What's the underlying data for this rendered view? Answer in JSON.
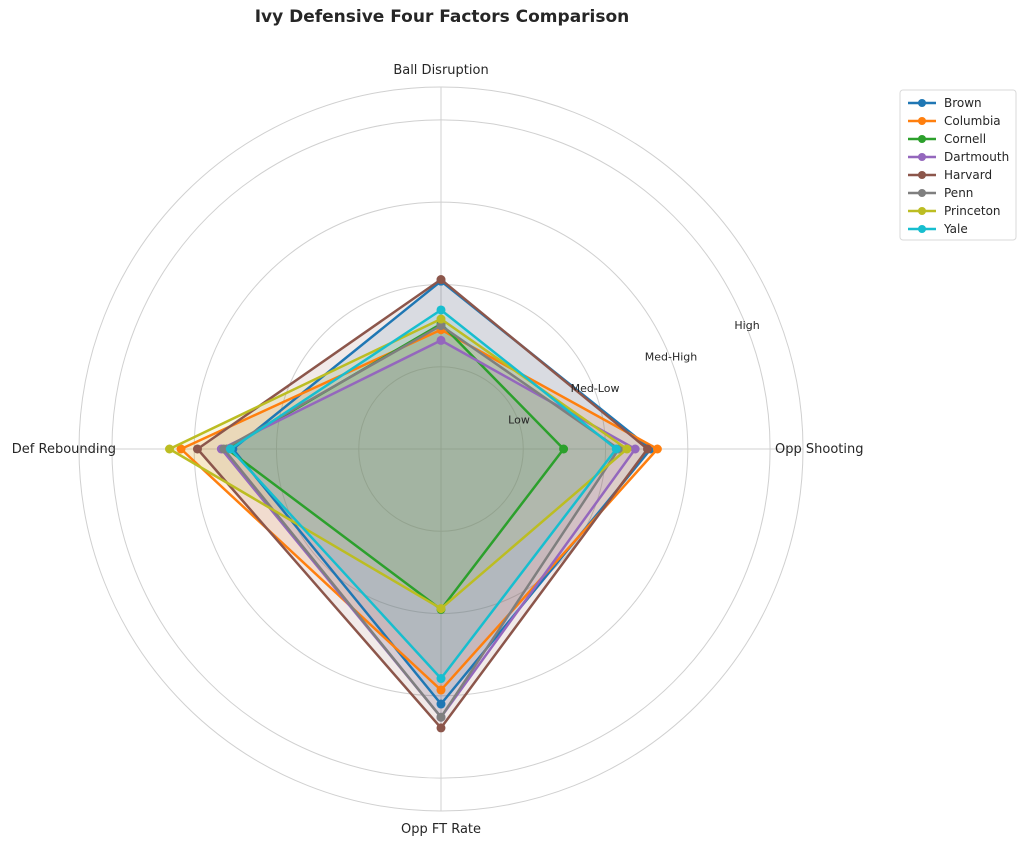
{
  "chart_data": {
    "type": "radar",
    "title": "Ivy Defensive Four Factors Comparison",
    "axes": [
      "Ball Disruption",
      "Opp Shooting",
      "Opp FT Rate",
      "Def Rebounding"
    ],
    "ring_labels": [
      "Low",
      "Med-Low",
      "Med-High",
      "High"
    ],
    "rlim": [
      0,
      4.4
    ],
    "grid": true,
    "legend_position": "top-right",
    "series": [
      {
        "name": "Brown",
        "color": "#1f77b4",
        "values": [
          2.04,
          2.55,
          3.1,
          2.53
        ]
      },
      {
        "name": "Columbia",
        "color": "#ff7f0e",
        "values": [
          1.45,
          2.63,
          2.93,
          3.16
        ]
      },
      {
        "name": "Cornell",
        "color": "#2ca02c",
        "values": [
          1.52,
          1.49,
          1.95,
          2.6
        ]
      },
      {
        "name": "Dartmouth",
        "color": "#9467bd",
        "values": [
          1.32,
          2.36,
          3.26,
          2.67
        ]
      },
      {
        "name": "Harvard",
        "color": "#8c564b",
        "values": [
          2.06,
          2.51,
          3.39,
          2.96
        ]
      },
      {
        "name": "Penn",
        "color": "#7f7f7f",
        "values": [
          1.5,
          2.16,
          3.26,
          2.64
        ]
      },
      {
        "name": "Princeton",
        "color": "#bcbd22",
        "values": [
          1.58,
          2.26,
          1.94,
          3.3
        ]
      },
      {
        "name": "Yale",
        "color": "#17becf",
        "values": [
          1.69,
          2.13,
          2.79,
          2.56
        ]
      }
    ]
  }
}
